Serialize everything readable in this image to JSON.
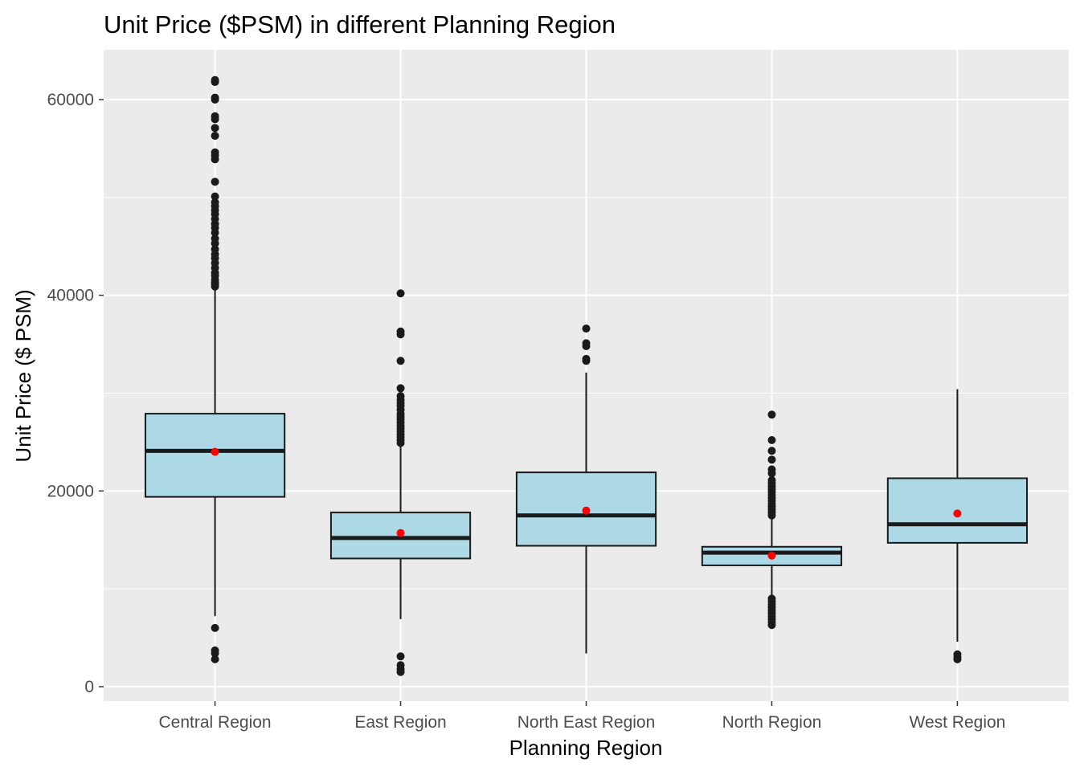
{
  "chart_data": {
    "type": "boxplot",
    "title": "Unit Price ($PSM) in different Planning Region",
    "xlabel": "Planning Region",
    "ylabel": "Unit Price ($ PSM)",
    "ylim": [
      -1500,
      65000
    ],
    "yticks": [
      0,
      20000,
      40000,
      60000
    ],
    "yticklabels": [
      "0",
      "20000",
      "40000",
      "60000"
    ],
    "grid": true,
    "colors": {
      "panel": "#ebebeb",
      "grid": "#ffffff",
      "box_fill": "#add8e6",
      "box_line": "#1a1a1a",
      "outlier": "#1a1a1a",
      "mean_point": "#ff0000"
    },
    "categories": [
      "Central Region",
      "East Region",
      "North East Region",
      "North Region",
      "West Region"
    ],
    "boxes": [
      {
        "category": "Central Region",
        "whisker_low": 7200,
        "q1": 19400,
        "median": 24100,
        "q3": 27900,
        "whisker_high": 40700,
        "mean": 24000,
        "outliers": [
          2800,
          3400,
          3700,
          6000,
          40900,
          41100,
          41300,
          41600,
          42000,
          42300,
          42800,
          43300,
          43800,
          44200,
          44700,
          45300,
          45800,
          46400,
          46900,
          47300,
          47800,
          48300,
          48700,
          49100,
          49500,
          50100,
          51600,
          53900,
          54300,
          54600,
          56300,
          57100,
          58000,
          58300,
          60000,
          60200,
          61800,
          62000
        ]
      },
      {
        "category": "East Region",
        "whisker_low": 6900,
        "q1": 13100,
        "median": 15200,
        "q3": 17800,
        "whisker_high": 24700,
        "mean": 15700,
        "outliers": [
          1500,
          1800,
          2200,
          3100,
          24900,
          25200,
          25500,
          25800,
          26100,
          26400,
          26700,
          27000,
          27300,
          27600,
          27900,
          28300,
          28700,
          29000,
          29300,
          29700,
          30500,
          33300,
          36000,
          36300,
          40200
        ]
      },
      {
        "category": "North East Region",
        "whisker_low": 3400,
        "q1": 14400,
        "median": 17500,
        "q3": 21900,
        "whisker_high": 32100,
        "mean": 18000,
        "outliers": [
          33300,
          33500,
          34800,
          35100,
          36600
        ]
      },
      {
        "category": "North Region",
        "whisker_low": 9300,
        "q1": 12400,
        "median": 13700,
        "q3": 14300,
        "whisker_high": 17300,
        "mean": 13400,
        "outliers": [
          6300,
          6600,
          6900,
          7200,
          7500,
          7800,
          8100,
          8400,
          8700,
          9000,
          17500,
          17800,
          18100,
          18400,
          18700,
          19000,
          19300,
          19600,
          19900,
          20200,
          20500,
          20800,
          21100,
          21800,
          22200,
          23200,
          24100,
          25200,
          27800
        ]
      },
      {
        "category": "West Region",
        "whisker_low": 4600,
        "q1": 14700,
        "median": 16600,
        "q3": 21300,
        "whisker_high": 30400,
        "mean": 17700,
        "outliers": [
          2800,
          3000,
          3300
        ]
      }
    ]
  }
}
